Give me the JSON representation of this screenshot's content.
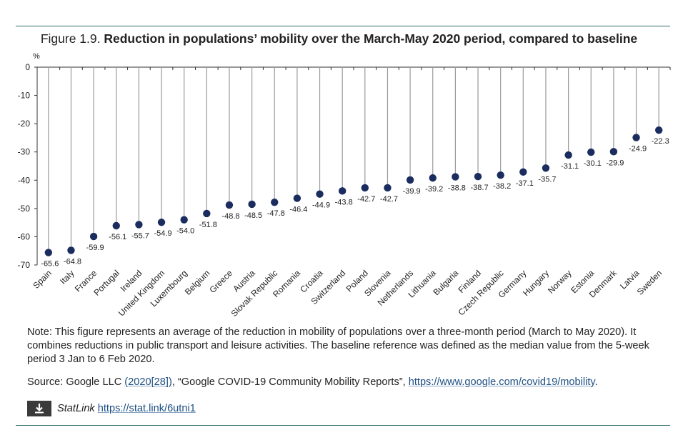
{
  "figure": {
    "number": "Figure 1.9.",
    "title": "Reduction in populations’ mobility over the March-May 2020 period, compared to baseline"
  },
  "chart_data": {
    "type": "scatter",
    "style": "lollipop",
    "ylabel": "%",
    "ylim": [
      -70,
      0
    ],
    "yticks": [
      0,
      -10,
      -20,
      -30,
      -40,
      -50,
      -60,
      -70
    ],
    "grid": false,
    "marker_color": "#1b2c5e",
    "stem_color": "#9a9a9a",
    "categories": [
      "Spain",
      "Italy",
      "France",
      "Portugal",
      "Ireland",
      "United Kingdom",
      "Luxembourg",
      "Belgium",
      "Greece",
      "Austria",
      "Slovak Republic",
      "Romania",
      "Croatia",
      "Switzerland",
      "Poland",
      "Slovenia",
      "Netherlands",
      "Lithuania",
      "Bulgaria",
      "Finland",
      "Czech Republic",
      "Germany",
      "Hungary",
      "Norway",
      "Estonia",
      "Denmark",
      "Latvia",
      "Sweden"
    ],
    "values": [
      -65.6,
      -64.8,
      -59.9,
      -56.1,
      -55.7,
      -54.9,
      -54.0,
      -51.8,
      -48.8,
      -48.5,
      -47.8,
      -46.4,
      -44.9,
      -43.8,
      -42.7,
      -42.7,
      -39.9,
      -39.2,
      -38.8,
      -38.7,
      -38.2,
      -37.1,
      -35.7,
      -31.1,
      -30.1,
      -29.9,
      -24.9,
      -22.3
    ],
    "value_labels": [
      "-65.6",
      "-64.8",
      "-59.9",
      "-56.1",
      "-55.7",
      "-54.9",
      "-54.0",
      "-51.8",
      "-48.8",
      "-48.5",
      "-47.8",
      "-46.4",
      "-44.9",
      "-43.8",
      "-42.7",
      "-42.7",
      "-39.9",
      "-39.2",
      "-38.8",
      "-38.7",
      "-38.2",
      "-37.1",
      "-35.7",
      "-31.1",
      "-30.1",
      "-29.9",
      "-24.9",
      "-22.3"
    ]
  },
  "note": "Note: This figure represents an average of the reduction in mobility of populations over a three-month period (March to May 2020). It combines reductions in public transport and leisure activities. The baseline reference was defined as the median value from the 5-week period 3 Jan to 6 Feb 2020.",
  "source": {
    "prefix": "Source: Google LLC ",
    "ref": "(2020[28])",
    "middle": ", “Google COVID-19 Community Mobility Reports”, ",
    "url": "https://www.google.com/covid19/mobility",
    "suffix": "."
  },
  "statlink": {
    "label": "StatLink",
    "url": "https://stat.link/6utni1",
    "icon": "download-icon"
  }
}
